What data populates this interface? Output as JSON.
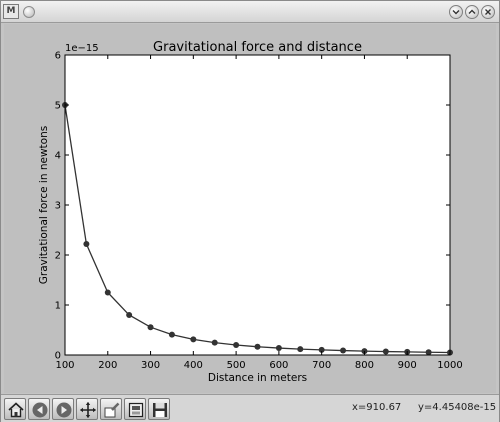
{
  "window": {
    "app_icon_text": "M"
  },
  "chart_data": {
    "type": "line",
    "title": "Gravitational force and distance",
    "xlabel": "Distance in meters",
    "ylabel": "Gravitational force in newtons",
    "offset_text": "1e−15",
    "xlim": [
      100,
      1000
    ],
    "ylim": [
      0,
      6
    ],
    "xticks": [
      100,
      200,
      300,
      400,
      500,
      600,
      700,
      800,
      900,
      1000
    ],
    "yticks": [
      0,
      1,
      2,
      3,
      4,
      5,
      6
    ],
    "grid": false,
    "series": [
      {
        "marker": "circle",
        "color": "#333333",
        "x": [
          100,
          150,
          200,
          250,
          300,
          350,
          400,
          450,
          500,
          550,
          600,
          650,
          700,
          750,
          800,
          850,
          900,
          950,
          1000
        ],
        "y": [
          5.0,
          2.22,
          1.25,
          0.8,
          0.556,
          0.408,
          0.3125,
          0.247,
          0.2,
          0.165,
          0.139,
          0.118,
          0.102,
          0.089,
          0.078,
          0.069,
          0.062,
          0.055,
          0.05
        ]
      }
    ]
  },
  "toolbar": {
    "tools": [
      {
        "name": "home",
        "icon": "home-icon"
      },
      {
        "name": "back",
        "icon": "back-arrow-icon"
      },
      {
        "name": "forward",
        "icon": "forward-arrow-icon"
      },
      {
        "name": "pan",
        "icon": "pan-icon"
      },
      {
        "name": "zoom",
        "icon": "zoom-icon"
      },
      {
        "name": "subplots",
        "icon": "subplots-icon"
      },
      {
        "name": "save",
        "icon": "save-icon"
      }
    ],
    "x_readout": "x=910.67",
    "y_readout": "y=4.45408e-15"
  }
}
